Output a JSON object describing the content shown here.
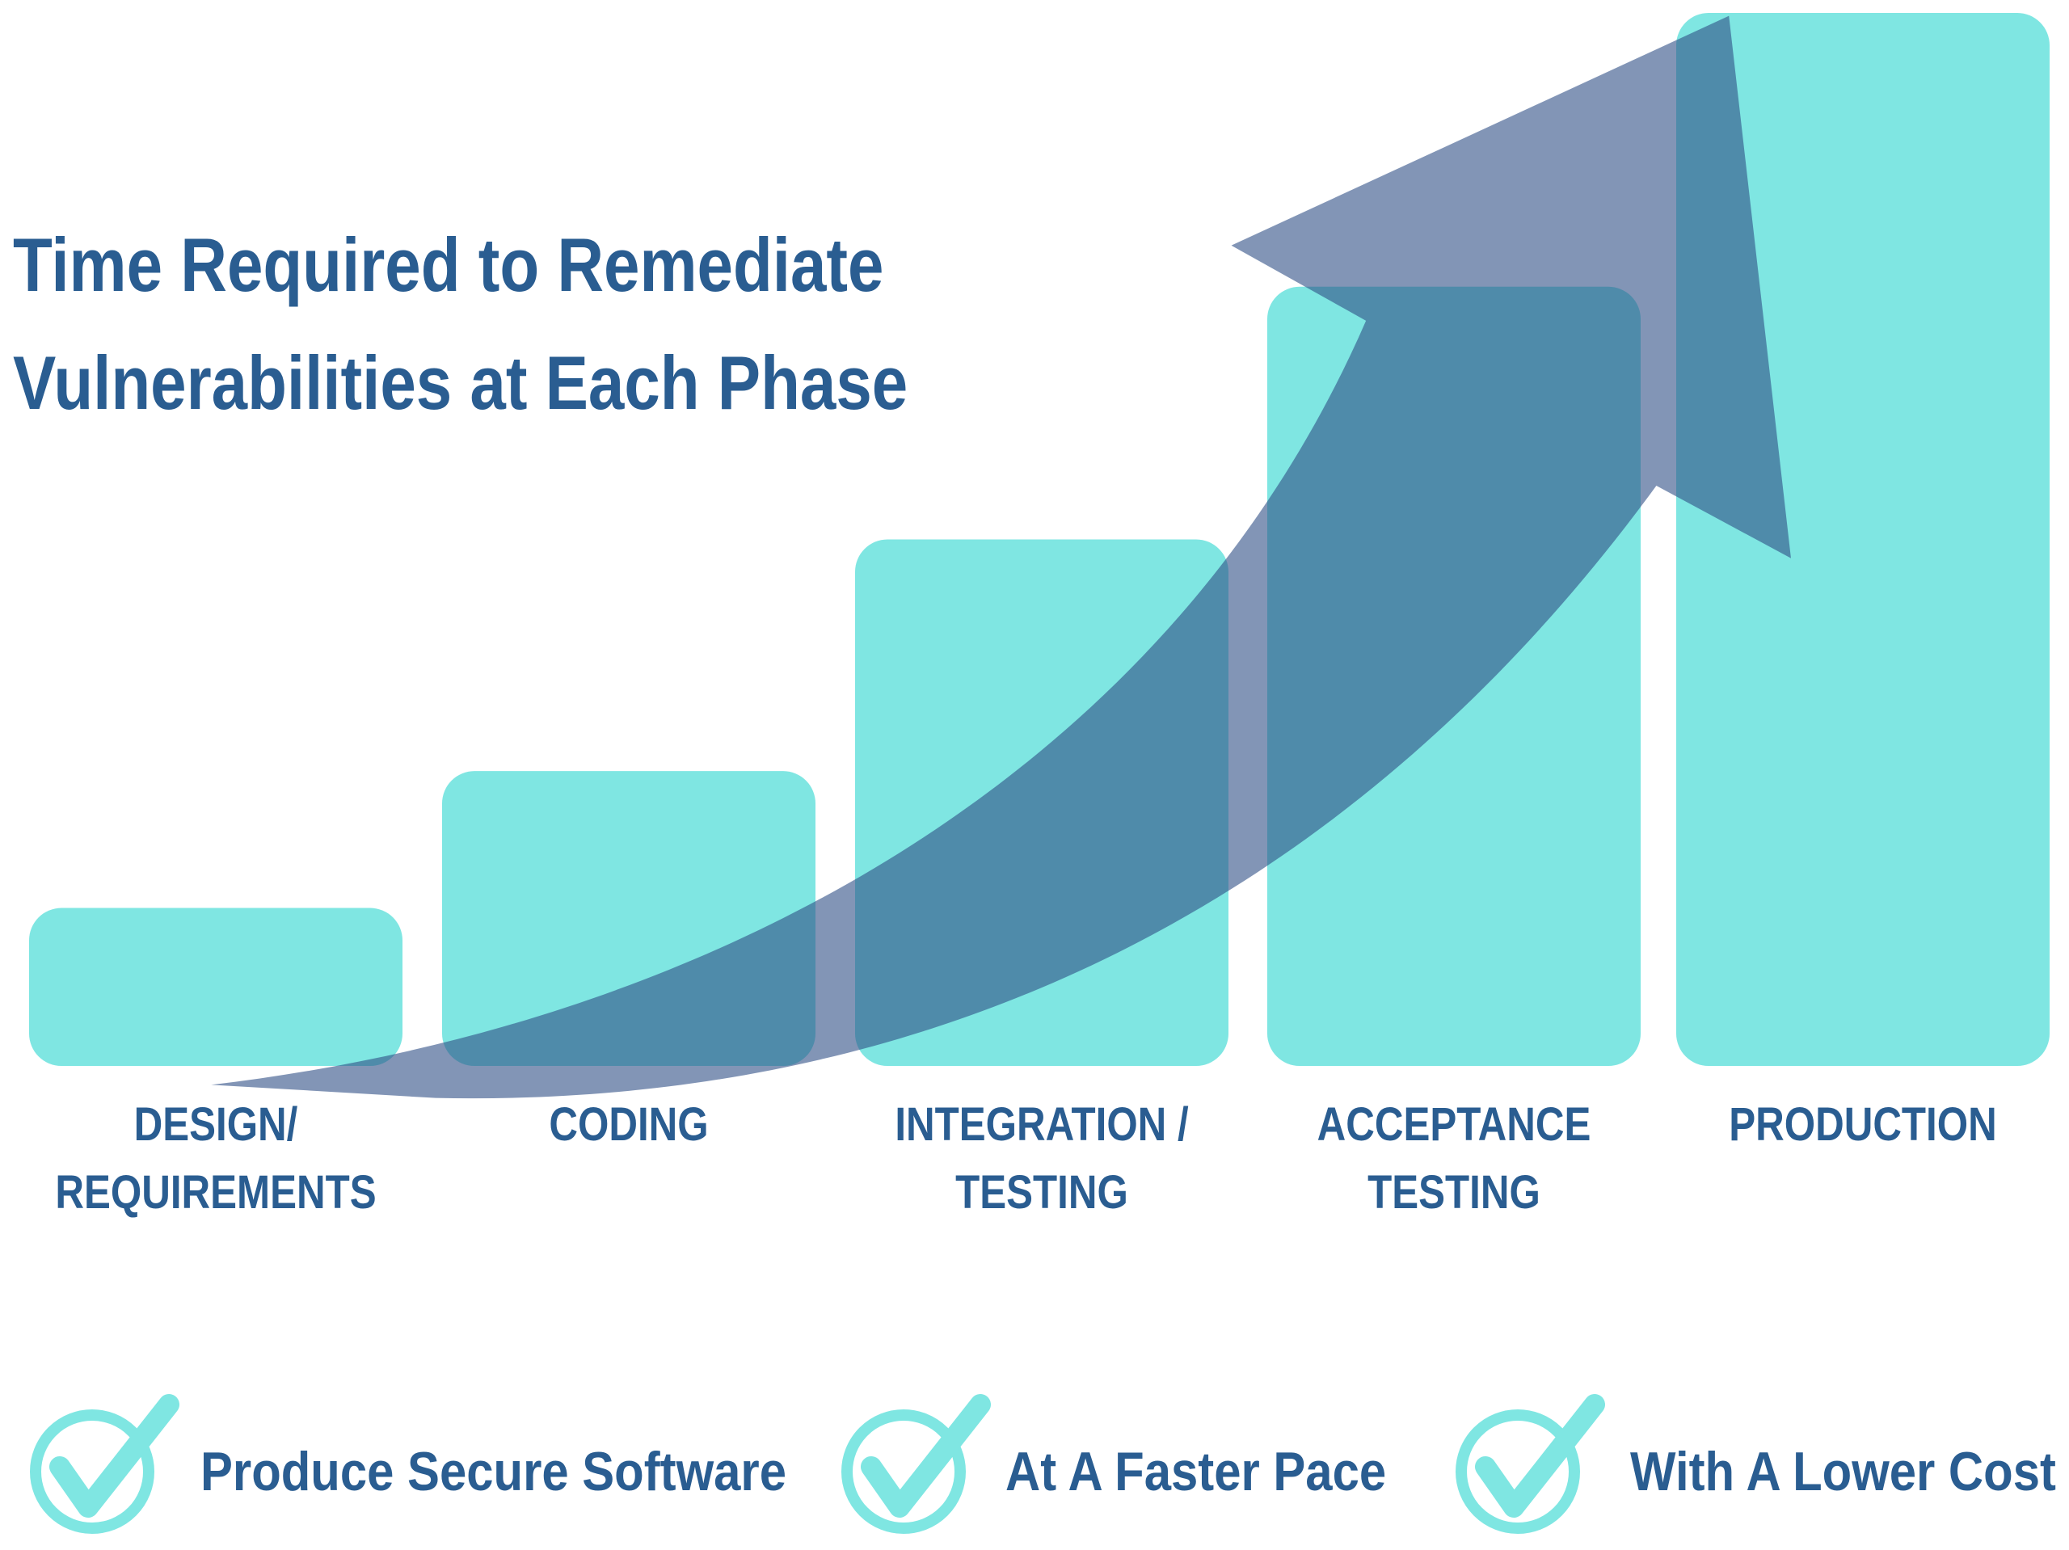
{
  "chart_data": {
    "type": "bar",
    "title": "Time Required to Remediate Vulnerabilities at Each Phase",
    "categories": [
      "DESIGN/\nREQUIREMENTS",
      "CODING",
      "INTEGRATION /\nTESTING",
      "ACCEPTANCE\nTESTING",
      "PRODUCTION"
    ],
    "values": [
      15,
      28,
      50,
      74,
      100
    ],
    "color": "#7fe6e2",
    "ylim": [
      0,
      100
    ]
  },
  "benefits": [
    "Produce Secure Software",
    "At A Faster Pace",
    "With A Lower Cost"
  ]
}
